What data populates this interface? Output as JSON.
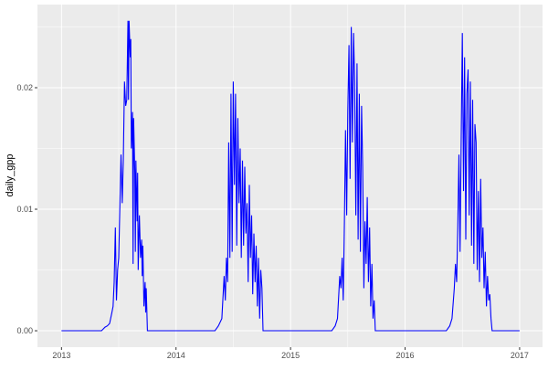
{
  "chart_data": {
    "type": "line",
    "title": "",
    "xlabel": "",
    "ylabel": "daily_gpp",
    "xlim": [
      2012.79,
      2017.2
    ],
    "ylim": [
      -0.00135,
      0.02684
    ],
    "x_ticks": [
      2013,
      2014,
      2015,
      2016,
      2017
    ],
    "x_tick_labels": [
      "2013",
      "2014",
      "2015",
      "2016",
      "2017"
    ],
    "y_ticks": [
      0,
      0.01,
      0.02
    ],
    "y_tick_labels": [
      "0.00",
      "0.01",
      "0.02"
    ],
    "grid": true,
    "line_color": "#0000ff",
    "panel_color": "#ebebeb",
    "series": [
      {
        "x": [
          2013.0,
          2013.35,
          2013.38,
          2013.4,
          2013.42,
          2013.44,
          2013.45,
          2013.46,
          2013.47,
          2013.48,
          2013.49,
          2013.5,
          2013.52,
          2013.53,
          2013.54,
          2013.55,
          2013.56,
          2013.57,
          2013.58,
          2013.585,
          2013.59,
          2013.6,
          2013.605,
          2013.61,
          2013.62,
          2013.625,
          2013.63,
          2013.64,
          2013.645,
          2013.65,
          2013.66,
          2013.665,
          2013.67,
          2013.68,
          2013.69,
          2013.7,
          2013.705,
          2013.71,
          2013.72,
          2013.73,
          2013.735,
          2013.74,
          2013.75,
          2013.76,
          2014.34,
          2014.37,
          2014.4,
          2014.42,
          2014.43,
          2014.44,
          2014.45,
          2014.46,
          2014.47,
          2014.48,
          2014.49,
          2014.5,
          2014.51,
          2014.52,
          2014.53,
          2014.54,
          2014.55,
          2014.56,
          2014.57,
          2014.58,
          2014.59,
          2014.6,
          2014.61,
          2014.62,
          2014.63,
          2014.64,
          2014.65,
          2014.66,
          2014.67,
          2014.68,
          2014.69,
          2014.7,
          2014.71,
          2014.72,
          2014.73,
          2014.74,
          2014.75,
          2014.76,
          2015.36,
          2015.39,
          2015.41,
          2015.43,
          2015.44,
          2015.45,
          2015.46,
          2015.47,
          2015.48,
          2015.49,
          2015.5,
          2015.51,
          2015.52,
          2015.53,
          2015.54,
          2015.55,
          2015.56,
          2015.57,
          2015.58,
          2015.59,
          2015.6,
          2015.61,
          2015.62,
          2015.63,
          2015.64,
          2015.65,
          2015.66,
          2015.67,
          2015.68,
          2015.69,
          2015.7,
          2015.71,
          2015.72,
          2015.73,
          2015.74,
          2015.75,
          2016.36,
          2016.39,
          2016.41,
          2016.43,
          2016.44,
          2016.45,
          2016.46,
          2016.47,
          2016.48,
          2016.49,
          2016.5,
          2016.51,
          2016.52,
          2016.53,
          2016.54,
          2016.55,
          2016.56,
          2016.57,
          2016.58,
          2016.59,
          2016.6,
          2016.61,
          2016.62,
          2016.63,
          2016.64,
          2016.65,
          2016.66,
          2016.67,
          2016.68,
          2016.69,
          2016.7,
          2016.71,
          2016.72,
          2016.73,
          2016.74,
          2016.75,
          2016.76,
          2017.0
        ],
        "y": [
          0,
          0,
          0.0003,
          0.0004,
          0.0006,
          0.0015,
          0.002,
          0.004,
          0.0085,
          0.0025,
          0.005,
          0.006,
          0.0145,
          0.0105,
          0.014,
          0.0205,
          0.0185,
          0.019,
          0.0255,
          0.019,
          0.0255,
          0.0225,
          0.024,
          0.015,
          0.018,
          0.0055,
          0.0175,
          0.013,
          0.0065,
          0.014,
          0.009,
          0.013,
          0.005,
          0.0095,
          0.006,
          0.0075,
          0.0045,
          0.007,
          0.002,
          0.004,
          0.0015,
          0.0035,
          0,
          0,
          0,
          0.0004,
          0.001,
          0.0045,
          0.0025,
          0.006,
          0.004,
          0.0155,
          0.006,
          0.0195,
          0.0065,
          0.0205,
          0.012,
          0.0195,
          0.007,
          0.0175,
          0.0105,
          0.015,
          0.006,
          0.014,
          0.007,
          0.0135,
          0.008,
          0.0105,
          0.004,
          0.012,
          0.006,
          0.0095,
          0.003,
          0.008,
          0.004,
          0.007,
          0.002,
          0.006,
          0.001,
          0.005,
          0.0035,
          0,
          0,
          0.0004,
          0.001,
          0.0045,
          0.0035,
          0.006,
          0.0025,
          0.009,
          0.0165,
          0.0095,
          0.018,
          0.0235,
          0.0125,
          0.025,
          0.0155,
          0.0245,
          0.0205,
          0.0095,
          0.022,
          0.0075,
          0.0195,
          0.0065,
          0.0185,
          0.0135,
          0.0035,
          0.009,
          0.0055,
          0.011,
          0.004,
          0.0085,
          0.002,
          0.0055,
          0.001,
          0.0025,
          0,
          0,
          0,
          0.0004,
          0.001,
          0.0035,
          0.0055,
          0.004,
          0.0085,
          0.0145,
          0.0065,
          0.016,
          0.0245,
          0.0115,
          0.0225,
          0.0075,
          0.0195,
          0.0215,
          0.0095,
          0.0205,
          0.007,
          0.019,
          0.0055,
          0.017,
          0.0155,
          0.005,
          0.0115,
          0.004,
          0.0125,
          0.006,
          0.0085,
          0.0035,
          0.0065,
          0.002,
          0.0045,
          0.0025,
          0.003,
          0.001,
          0,
          0
        ]
      }
    ]
  }
}
